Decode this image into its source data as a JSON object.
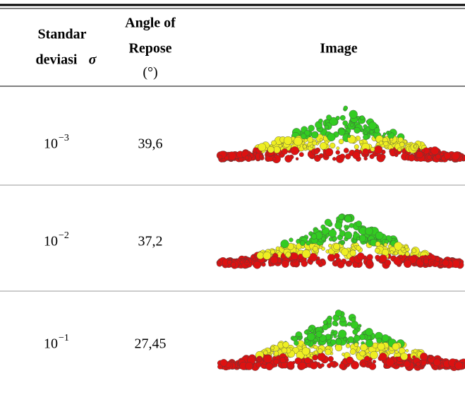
{
  "table": {
    "header": [
      {
        "lines": [
          "Standar",
          "deviasi"
        ],
        "symbol": "σ"
      },
      {
        "lines": [
          "Angle of",
          "Repose"
        ],
        "unit": "(°)"
      },
      {
        "text": "Image"
      }
    ],
    "rows": [
      {
        "base": "10",
        "exponent": "−3",
        "angle": "39,6"
      },
      {
        "base": "10",
        "exponent": "−2",
        "angle": "37,2"
      },
      {
        "base": "10",
        "exponent": "−1",
        "angle": "27,45"
      }
    ]
  }
}
